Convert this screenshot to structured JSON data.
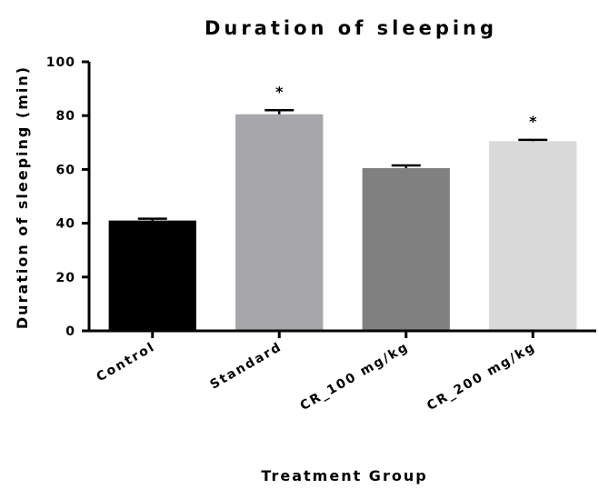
{
  "chart_data": {
    "type": "bar",
    "title": "Duration of sleeping",
    "xlabel": "Treatment Group",
    "ylabel": "Duration of sleeping (min)",
    "ylim": [
      0,
      100
    ],
    "yticks": [
      0,
      20,
      40,
      60,
      80,
      100
    ],
    "categories": [
      "Control",
      "Standard",
      "CR_100 mg/kg",
      "CR_200 mg/kg"
    ],
    "values": [
      41,
      80.5,
      60.5,
      70.5
    ],
    "errors": [
      0.7,
      1.5,
      1.0,
      0.5
    ],
    "annotations": [
      "",
      "*",
      "",
      "*"
    ],
    "colors": [
      "#000000",
      "#a6a6ab",
      "#808080",
      "#d9d9d9"
    ],
    "grid": false,
    "legend": "none"
  }
}
